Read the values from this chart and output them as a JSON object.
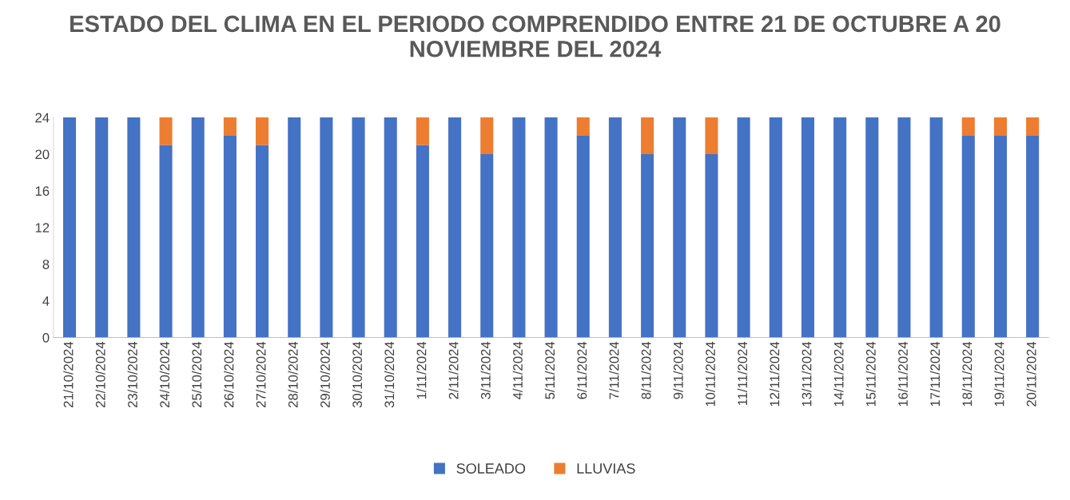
{
  "chart_data": {
    "type": "bar",
    "title": "ESTADO DEL CLIMA EN EL PERIODO COMPRENDIDO ENTRE 21 DE OCTUBRE A 20 NOVIEMBRE DEL 2024",
    "categories": [
      "21/10/2024",
      "22/10/2024",
      "23/10/2024",
      "24/10/2024",
      "25/10/2024",
      "26/10/2024",
      "27/10/2024",
      "28/10/2024",
      "29/10/2024",
      "30/10/2024",
      "31/10/2024",
      "1/11/2024",
      "2/11/2024",
      "3/11/2024",
      "4/11/2024",
      "5/11/2024",
      "6/11/2024",
      "7/11/2024",
      "8/11/2024",
      "9/11/2024",
      "10/11/2024",
      "11/11/2024",
      "12/11/2024",
      "13/11/2024",
      "14/11/2024",
      "15/11/2024",
      "16/11/2024",
      "17/11/2024",
      "18/11/2024",
      "19/11/2024",
      "20/11/2024"
    ],
    "series": [
      {
        "name": "SOLEADO",
        "color": "#4472c4",
        "values": [
          24,
          24,
          24,
          21,
          24,
          22,
          21,
          24,
          24,
          24,
          24,
          21,
          24,
          20,
          24,
          24,
          22,
          24,
          20,
          24,
          20,
          24,
          24,
          24,
          24,
          24,
          24,
          24,
          22,
          22,
          22
        ]
      },
      {
        "name": "LLUVIAS",
        "color": "#ed7d31",
        "values": [
          0,
          0,
          0,
          3,
          0,
          2,
          3,
          0,
          0,
          0,
          0,
          3,
          0,
          4,
          0,
          0,
          2,
          0,
          4,
          0,
          4,
          0,
          0,
          0,
          0,
          0,
          0,
          0,
          2,
          2,
          2
        ]
      }
    ],
    "stacked": true,
    "ylim": [
      0,
      24
    ],
    "yticks": [
      0,
      4,
      8,
      12,
      16,
      20,
      24
    ],
    "grid": false,
    "legend": "bottom"
  }
}
